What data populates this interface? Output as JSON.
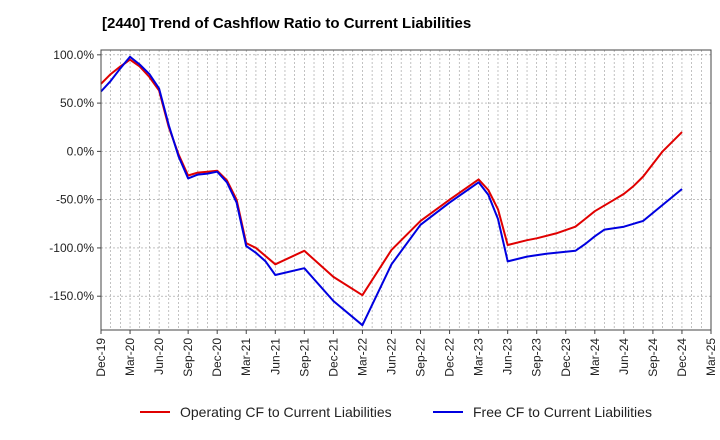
{
  "chart_data": {
    "type": "line",
    "title": "[2440]  Trend of Cashflow Ratio to Current Liabilities",
    "xlabel": "",
    "ylabel": "",
    "ylim": [
      -185,
      105
    ],
    "y_ticks": [
      100,
      50,
      0,
      -50,
      -100,
      -150
    ],
    "y_tick_labels": [
      "100.0%",
      "50.0%",
      "0.0%",
      "-50.0%",
      "-100.0%",
      "-150.0%"
    ],
    "x_tick_labels": [
      "Dec-19",
      "Mar-20",
      "Jun-20",
      "Sep-20",
      "Dec-20",
      "Mar-21",
      "Jun-21",
      "Sep-21",
      "Dec-21",
      "Mar-22",
      "Jun-22",
      "Sep-22",
      "Dec-22",
      "Mar-23",
      "Jun-23",
      "Sep-23",
      "Dec-23",
      "Mar-24",
      "Jun-24",
      "Sep-24",
      "Dec-24",
      "Mar-25"
    ],
    "grid": true,
    "legend_position": "bottom",
    "series": [
      {
        "name": "Operating CF to Current Liabilities",
        "color": "#e00000",
        "points": [
          [
            0,
            70
          ],
          [
            1,
            80
          ],
          [
            2,
            88
          ],
          [
            3,
            95
          ],
          [
            4,
            88
          ],
          [
            5,
            77
          ],
          [
            6,
            63
          ],
          [
            7,
            25
          ],
          [
            8,
            -3
          ],
          [
            9,
            -25
          ],
          [
            10,
            -22
          ],
          [
            11,
            -21
          ],
          [
            12,
            -20
          ],
          [
            13,
            -30
          ],
          [
            14,
            -50
          ],
          [
            15,
            -95
          ],
          [
            16,
            -100
          ],
          [
            18,
            -117
          ],
          [
            21,
            -103
          ],
          [
            24,
            -130
          ],
          [
            27,
            -149
          ],
          [
            30,
            -102
          ],
          [
            33,
            -72
          ],
          [
            36,
            -50
          ],
          [
            39,
            -29
          ],
          [
            40,
            -40
          ],
          [
            41,
            -60
          ],
          [
            42,
            -97
          ],
          [
            44,
            -92
          ],
          [
            45,
            -90
          ],
          [
            47,
            -85
          ],
          [
            49,
            -78
          ],
          [
            50,
            -70
          ],
          [
            51,
            -62
          ],
          [
            53,
            -50
          ],
          [
            54,
            -44
          ],
          [
            55,
            -36
          ],
          [
            56,
            -26
          ],
          [
            58,
            0
          ],
          [
            60,
            20
          ]
        ]
      },
      {
        "name": "Free CF to Current Liabilities",
        "color": "#0000e0",
        "points": [
          [
            0,
            62
          ],
          [
            1,
            73
          ],
          [
            2,
            86
          ],
          [
            3,
            98
          ],
          [
            4,
            90
          ],
          [
            5,
            80
          ],
          [
            6,
            65
          ],
          [
            7,
            27
          ],
          [
            8,
            -5
          ],
          [
            9,
            -28
          ],
          [
            10,
            -24
          ],
          [
            11,
            -23
          ],
          [
            12,
            -21
          ],
          [
            13,
            -32
          ],
          [
            14,
            -53
          ],
          [
            15,
            -98
          ],
          [
            16,
            -105
          ],
          [
            17,
            -114
          ],
          [
            18,
            -128
          ],
          [
            21,
            -121
          ],
          [
            24,
            -155
          ],
          [
            27,
            -180
          ],
          [
            30,
            -117
          ],
          [
            33,
            -76
          ],
          [
            36,
            -53
          ],
          [
            39,
            -32
          ],
          [
            40,
            -45
          ],
          [
            41,
            -70
          ],
          [
            42,
            -114
          ],
          [
            44,
            -109
          ],
          [
            46,
            -106
          ],
          [
            49,
            -103
          ],
          [
            50,
            -96
          ],
          [
            51,
            -88
          ],
          [
            52,
            -81
          ],
          [
            54,
            -78
          ],
          [
            55,
            -75
          ],
          [
            56,
            -72
          ],
          [
            60,
            -39
          ]
        ]
      }
    ]
  }
}
